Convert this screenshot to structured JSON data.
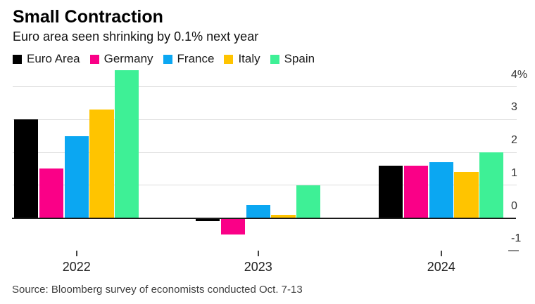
{
  "chart_data": {
    "type": "bar",
    "title": "Small Contraction",
    "subtitle": "Euro area seen shrinking by 0.1% next year",
    "categories": [
      "2022",
      "2023",
      "2024"
    ],
    "series": [
      {
        "name": "Euro Area",
        "color": "#000000",
        "values": [
          3.0,
          -0.1,
          1.6
        ]
      },
      {
        "name": "Germany",
        "color": "#fa0087",
        "values": [
          1.5,
          -0.5,
          1.6
        ]
      },
      {
        "name": "France",
        "color": "#0ba7f2",
        "values": [
          2.5,
          0.4,
          1.7
        ]
      },
      {
        "name": "Italy",
        "color": "#ffc400",
        "values": [
          3.3,
          0.1,
          1.4
        ]
      },
      {
        "name": "Spain",
        "color": "#3ef096",
        "values": [
          4.5,
          1.0,
          2.0
        ]
      }
    ],
    "yticks": [
      {
        "label": "4%",
        "value": 4
      },
      {
        "label": "3",
        "value": 3
      },
      {
        "label": "2",
        "value": 2
      },
      {
        "label": "1",
        "value": 1
      },
      {
        "label": "0",
        "value": 0
      },
      {
        "label": "-1",
        "value": -1
      }
    ],
    "ylim": [
      -1,
      4.6
    ],
    "grid": "horizontal",
    "legend_position": "top",
    "axis_side": "right",
    "colors": {
      "gridline": "#dcdcdc",
      "axis_line": "#1a1a1a"
    },
    "source": "Source: Bloomberg survey of economists conducted Oct. 7-13"
  }
}
